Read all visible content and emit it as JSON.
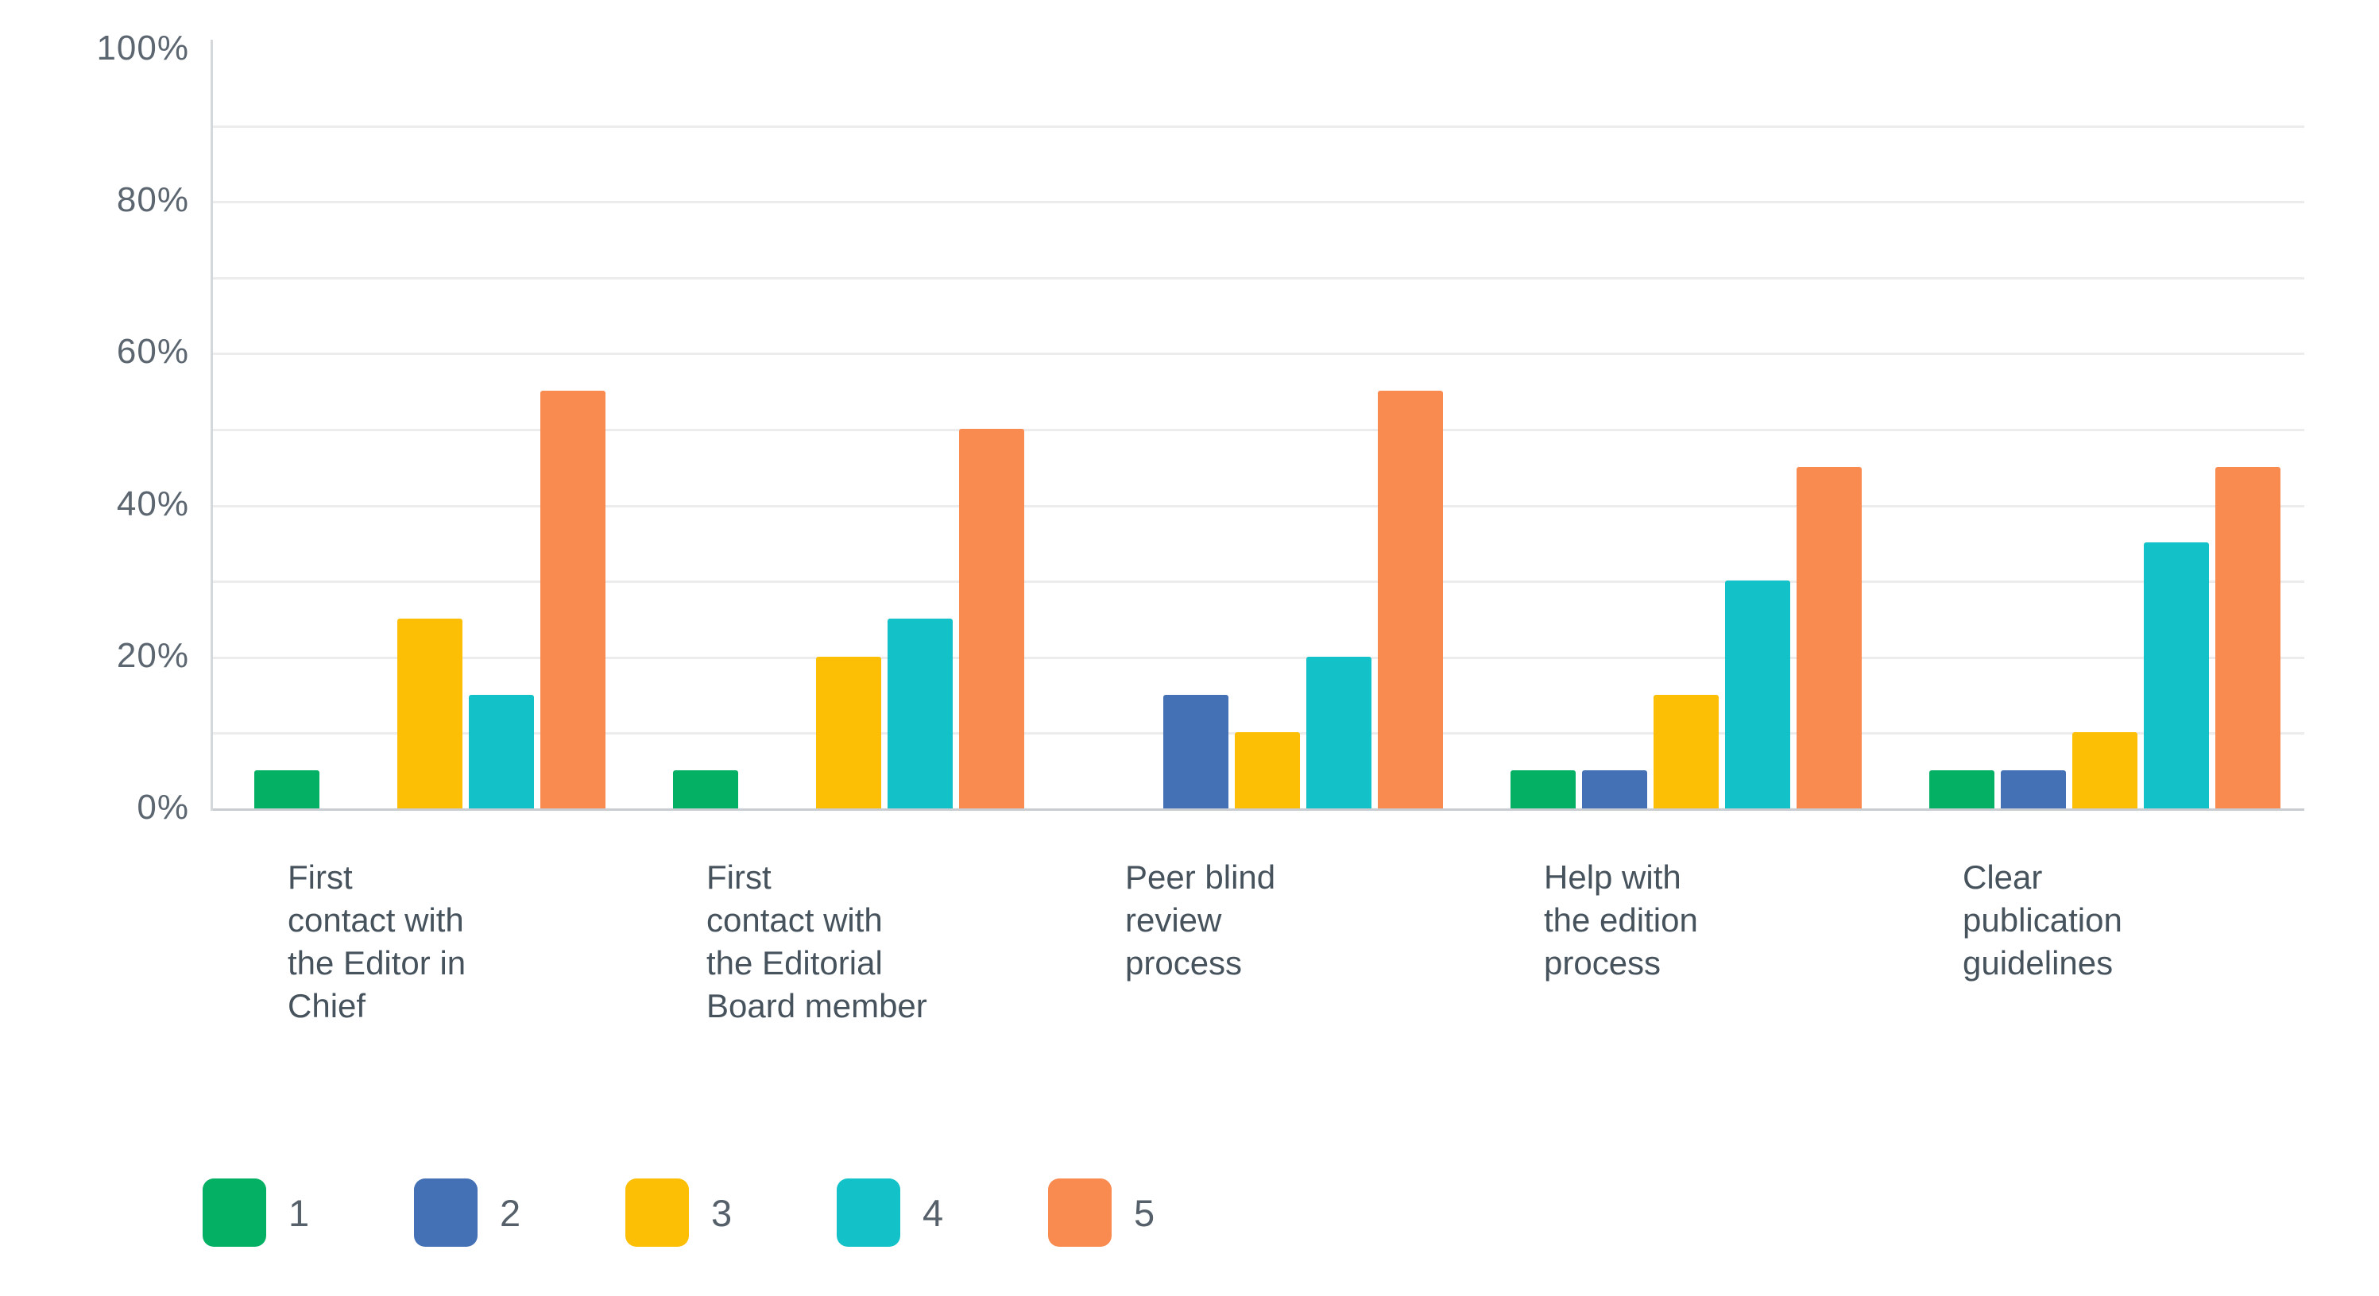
{
  "chart_data": {
    "type": "bar",
    "title": "",
    "xlabel": "",
    "ylabel": "",
    "ylim": [
      0,
      100
    ],
    "grid": true,
    "gridline_step": 10,
    "legend_position": "bottom",
    "y_ticks": [
      {
        "label": "0%",
        "value": 0
      },
      {
        "label": "20%",
        "value": 20
      },
      {
        "label": "40%",
        "value": 40
      },
      {
        "label": "60%",
        "value": 60
      },
      {
        "label": "80%",
        "value": 80
      },
      {
        "label": "100%",
        "value": 100
      }
    ],
    "categories": [
      "First contact with the Editor in Chief",
      "First contact with the Editorial Board member",
      "Peer blind review process",
      "Help with the edition process",
      "Clear publication guidelines"
    ],
    "category_label_lines": [
      [
        "First",
        "contact with",
        "the Editor in",
        "Chief"
      ],
      [
        "First",
        "contact with",
        "the Editorial",
        "Board member"
      ],
      [
        "Peer blind",
        "review",
        "process"
      ],
      [
        "Help with",
        "the edition",
        "process"
      ],
      [
        "Clear",
        "publication",
        "guidelines"
      ]
    ],
    "series": [
      {
        "name": "1",
        "color": "#04B164",
        "values": [
          5,
          5,
          0,
          5,
          5
        ]
      },
      {
        "name": "2",
        "color": "#4471B6",
        "values": [
          0,
          0,
          15,
          5,
          5
        ]
      },
      {
        "name": "3",
        "color": "#FDBF05",
        "values": [
          25,
          20,
          10,
          15,
          10
        ]
      },
      {
        "name": "4",
        "color": "#13C2C8",
        "values": [
          15,
          25,
          20,
          30,
          35
        ]
      },
      {
        "name": "5",
        "color": "#F98B50",
        "values": [
          55,
          50,
          55,
          45,
          45
        ]
      }
    ],
    "unit": "%"
  },
  "colors": {
    "gridline": "#ececec",
    "baseline": "#c9cdd1",
    "axis_line": "#d5d8da",
    "tick_text": "#5c6670",
    "category_text": "#46525c",
    "legend_text": "#55606a",
    "background": "#ffffff"
  }
}
